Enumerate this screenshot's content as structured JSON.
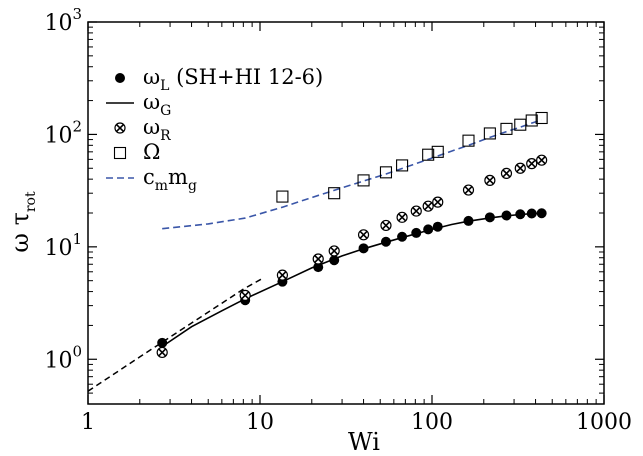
{
  "chart_data": {
    "type": "scatter",
    "xscale": "log",
    "yscale": "log",
    "xlim": [
      1,
      1000
    ],
    "ylim": [
      0.4,
      1000
    ],
    "xlabel": "Wi",
    "ylabel_main": "ω τ",
    "ylabel_sub": "rot",
    "x_ticks": [
      {
        "value": 1,
        "label": "1"
      },
      {
        "value": 10,
        "label": "10"
      },
      {
        "value": 100,
        "label": "100"
      },
      {
        "value": 1000,
        "label": "1000"
      }
    ],
    "y_ticks": [
      {
        "value": 1,
        "base": "10",
        "exp": "0"
      },
      {
        "value": 10,
        "base": "10",
        "exp": "1"
      },
      {
        "value": 100,
        "base": "10",
        "exp": "2"
      },
      {
        "value": 1000,
        "base": "10",
        "exp": "3"
      }
    ],
    "grid": false,
    "legend_position": "top-left",
    "series": [
      {
        "name_main": "ω",
        "name_sub": "L",
        "name_suffix": " (SH+HI 12-6)",
        "marker": "filled-circle",
        "x": [
          2.7,
          8.2,
          13.5,
          21.8,
          27.0,
          40.0,
          54.0,
          67.0,
          81.0,
          95.0,
          108.0,
          163.0,
          217.0,
          271.0,
          326.0,
          380.0,
          434.0
        ],
        "y": [
          1.4,
          3.35,
          4.9,
          6.6,
          7.6,
          9.7,
          11.1,
          12.3,
          13.3,
          14.3,
          15.1,
          17.0,
          18.3,
          19.0,
          19.5,
          19.8,
          19.9
        ]
      },
      {
        "name_main": "ω",
        "name_sub": "G",
        "name_suffix": "",
        "marker": "solid-line",
        "x": [
          2.7,
          4,
          6,
          8.2,
          13.5,
          20,
          30,
          40,
          54,
          70,
          95,
          130,
          163,
          217,
          271,
          326,
          380,
          434
        ],
        "y": [
          1.3,
          1.95,
          2.7,
          3.45,
          4.9,
          6.5,
          8.3,
          9.6,
          11.0,
          12.3,
          14.0,
          15.8,
          16.9,
          18.1,
          18.9,
          19.4,
          19.7,
          19.9
        ]
      },
      {
        "name_main": "ω",
        "name_sub": "R",
        "name_suffix": "",
        "marker": "crossed-circle",
        "x": [
          2.7,
          8.2,
          13.5,
          21.8,
          27.0,
          40.0,
          54.0,
          67.0,
          81.0,
          95.0,
          108.0,
          163.0,
          217.0,
          271.0,
          326.0,
          380.0,
          434.0
        ],
        "y": [
          1.15,
          3.7,
          5.6,
          7.8,
          9.2,
          12.8,
          15.5,
          18.3,
          20.8,
          23.0,
          25.0,
          32.0,
          39.0,
          45.0,
          50.0,
          55.0,
          59.0
        ]
      },
      {
        "name_main": "Ω",
        "name_sub": "",
        "name_suffix": "",
        "marker": "open-square",
        "x": [
          13.5,
          27.0,
          40.0,
          54.0,
          67.0,
          95.0,
          108.0,
          163.0,
          217.0,
          271.0,
          326.0,
          380.0,
          434.0
        ],
        "y": [
          28.0,
          30.0,
          39.0,
          46.0,
          53.0,
          66.0,
          70.0,
          88.0,
          102.0,
          112.0,
          122.0,
          133.0,
          140.0
        ]
      },
      {
        "name_main": "c",
        "name_sub": "m",
        "name_main2": "m",
        "name_sub2": "g",
        "name_suffix": "",
        "marker": "dashed-line",
        "color": "#3a56a8",
        "x": [
          2.7,
          5,
          8.2,
          13.5,
          20,
          30,
          40,
          54,
          70,
          95,
          130,
          163,
          217,
          271,
          326,
          380,
          434
        ],
        "y": [
          14.5,
          16.0,
          18.0,
          22.5,
          27.5,
          33.5,
          38.5,
          44.5,
          51.0,
          60.0,
          71.0,
          80.0,
          94.0,
          106.0,
          116.0,
          126.0,
          135.0
        ]
      },
      {
        "name_main": "",
        "marker": "black-dashed-line",
        "x": [
          1,
          2,
          4,
          8,
          10.5
        ],
        "y": [
          0.52,
          1.05,
          2.1,
          4.2,
          5.3
        ]
      }
    ]
  }
}
